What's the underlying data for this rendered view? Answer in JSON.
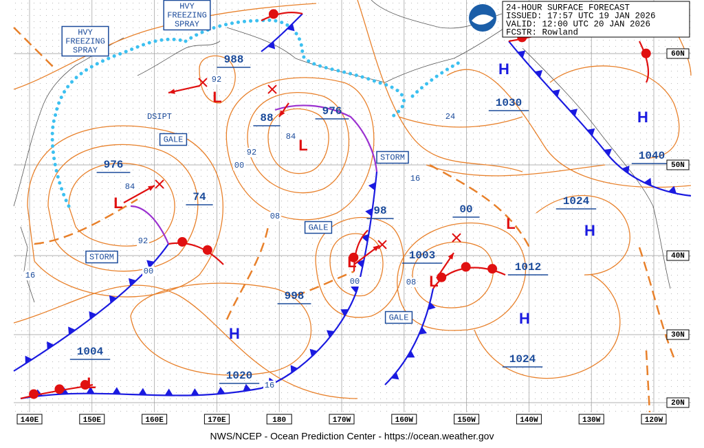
{
  "header": {
    "lines": [
      "24-HOUR SURFACE FORECAST",
      "ISSUED: 17:57 UTC 19 JAN 2026",
      "VALID:  12:00 UTC 20 JAN 2026",
      "FCSTR:  Rowland"
    ]
  },
  "footer": "NWS/NCEP - Ocean Prediction Center - https://ocean.weather.gov",
  "longitudes": [
    "140E",
    "150E",
    "160E",
    "170E",
    "180",
    "170W",
    "160W",
    "150W",
    "140W",
    "130W",
    "120W"
  ],
  "latitudes": [
    "60N",
    "50N",
    "40N",
    "30N",
    "20N"
  ],
  "pressure_labels": [
    "988",
    "976",
    "88",
    "976",
    "74",
    "1030",
    "1040",
    "1024",
    "98",
    "00",
    "1003",
    "1012",
    "998",
    "1004",
    "1020",
    "1024"
  ],
  "isobar_labels": [
    "92",
    "84",
    "92",
    "00",
    "84",
    "92",
    "00",
    "08",
    "24",
    "16",
    "00",
    "08",
    "16",
    "16"
  ],
  "warnings": [
    {
      "lines": [
        "HVY",
        "FREEZING",
        "SPRAY"
      ]
    },
    {
      "lines": [
        "HVY",
        "FREEZING",
        "SPRAY"
      ]
    },
    {
      "lines": [
        "GALE"
      ]
    },
    {
      "lines": [
        "GALE"
      ]
    },
    {
      "lines": [
        "GALE"
      ]
    },
    {
      "lines": [
        "STORM"
      ]
    },
    {
      "lines": [
        "STORM"
      ]
    }
  ],
  "dissipating": "DSIPT",
  "highs": [
    "H",
    "H",
    "H",
    "H",
    "H"
  ],
  "lows": [
    "L",
    "L",
    "L",
    "L",
    "L",
    "L",
    "L"
  ]
}
